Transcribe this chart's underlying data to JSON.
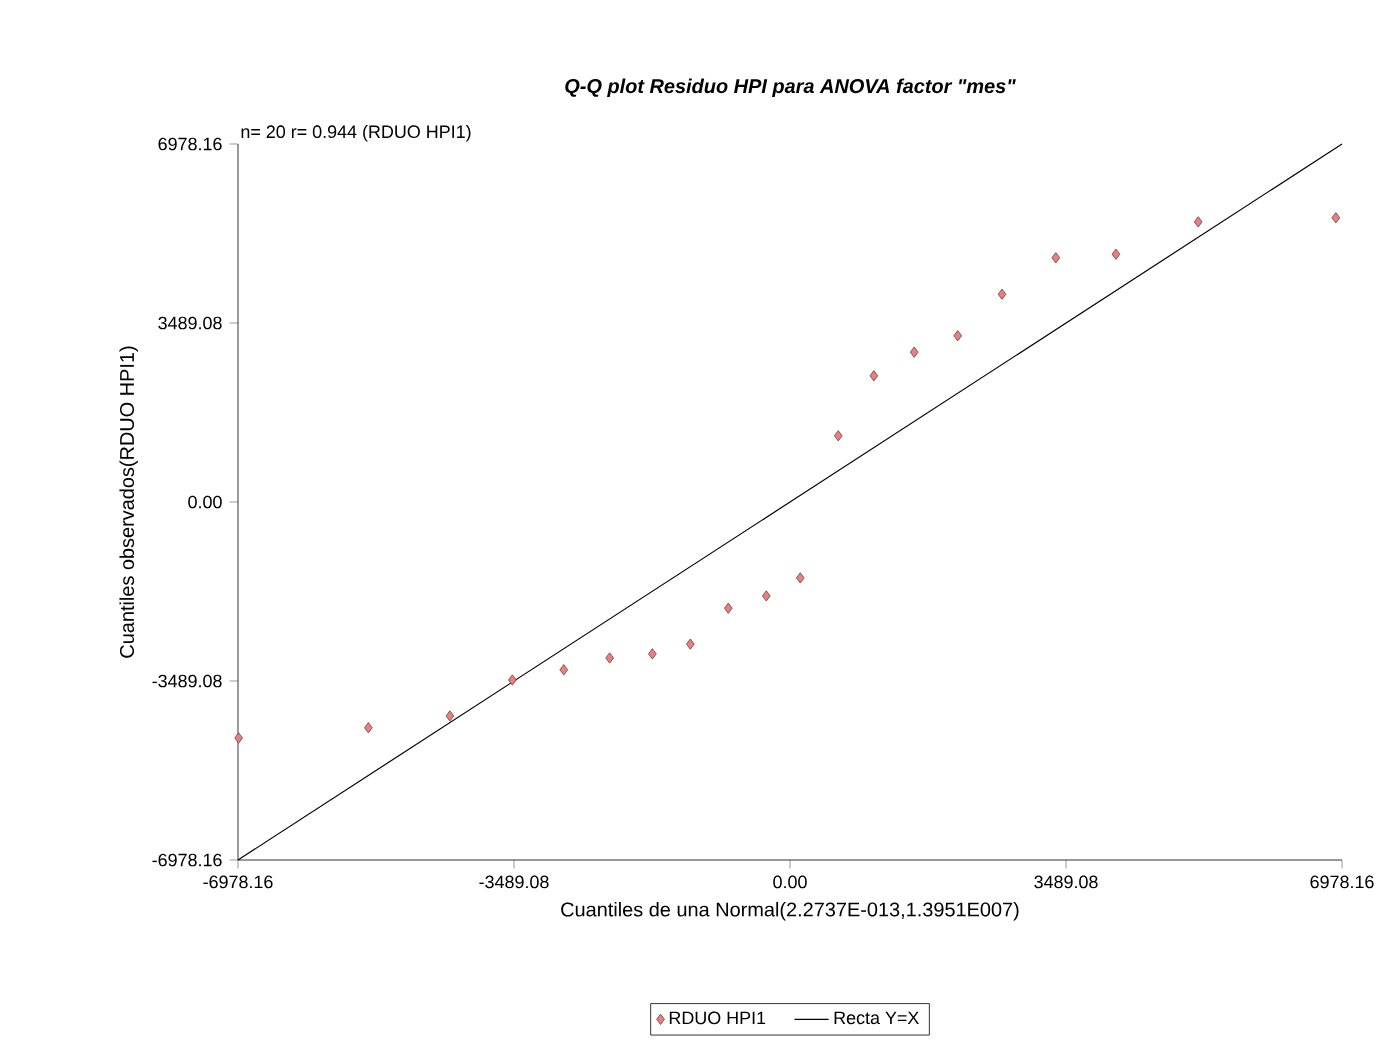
{
  "chart_data": {
    "type": "scatter",
    "title": "Q-Q plot Residuo HPI para ANOVA factor \"mes\"",
    "xlabel": "Cuantiles de una Normal(2.2737E-013,1.3951E007)",
    "ylabel": "Cuantiles observados(RDUO HPI1)",
    "annotations": [
      "n= 20 r= 0.944 (RDUO HPI1)"
    ],
    "series": [
      {
        "name": "RDUO HPI1",
        "color": "#f07c7c",
        "marker": "diamond",
        "x": [
          -6970,
          -5330,
          -4300,
          -3510,
          -2860,
          -2280,
          -1740,
          -1260,
          -780,
          -300,
          130,
          610,
          1060,
          1570,
          2120,
          2680,
          3360,
          4120,
          5160,
          6900
        ],
        "values": [
          -4600,
          -4400,
          -4170,
          -3470,
          -3270,
          -3040,
          -2960,
          -2770,
          -2070,
          -1830,
          -1480,
          1290,
          2460,
          2920,
          3240,
          4050,
          4760,
          4830,
          5460,
          5540
        ]
      },
      {
        "name": "Recta Y=X",
        "type": "line",
        "color": "#000000",
        "line_style": "solid",
        "x": [
          -6978,
          6978
        ],
        "values": [
          -6978,
          6978
        ]
      }
    ],
    "xlim": [
      -6978.16,
      6978.16
    ],
    "ylim": [
      -6978.16,
      6978.16
    ],
    "xticks": [
      -6978.16,
      -3489.08,
      {
        "value": 0,
        "label": "0.00"
      },
      3489.08,
      6978.16
    ],
    "yticks": [
      -6978.16,
      -3489.08,
      {
        "value": 0,
        "label": "0.00"
      },
      3489.08,
      6978.16
    ],
    "grid": false,
    "legend": "bottom"
  }
}
